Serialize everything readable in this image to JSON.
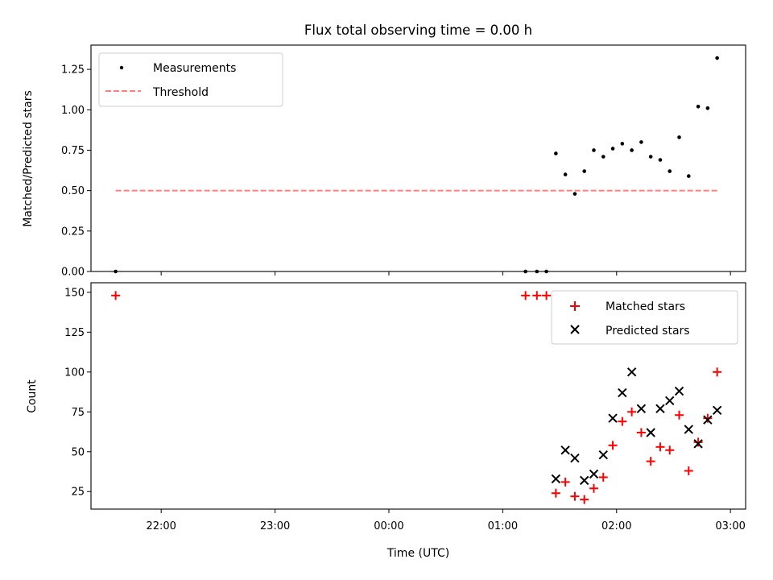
{
  "chart_data": [
    {
      "type": "scatter",
      "title": "Flux total observing time = 0.00 h",
      "xlabel": "",
      "ylabel": "Matched/Predicted stars",
      "xlim": [
        "21:23",
        "03:08"
      ],
      "ylim": [
        0,
        1.4
      ],
      "y_ticks": [
        "0.00",
        "0.25",
        "0.50",
        "0.75",
        "1.00",
        "1.25"
      ],
      "legend": "top-left",
      "series": [
        {
          "name": "Measurements",
          "marker": "dot",
          "color": "#000000",
          "points": [
            {
              "x": "21:36",
              "y": 0.0
            },
            {
              "x": "01:12",
              "y": 0.0
            },
            {
              "x": "01:18",
              "y": 0.0
            },
            {
              "x": "01:23",
              "y": 0.0
            },
            {
              "x": "01:28",
              "y": 0.73
            },
            {
              "x": "01:33",
              "y": 0.6
            },
            {
              "x": "01:38",
              "y": 0.48
            },
            {
              "x": "01:43",
              "y": 0.62
            },
            {
              "x": "01:48",
              "y": 0.75
            },
            {
              "x": "01:53",
              "y": 0.71
            },
            {
              "x": "01:58",
              "y": 0.76
            },
            {
              "x": "02:03",
              "y": 0.79
            },
            {
              "x": "02:08",
              "y": 0.75
            },
            {
              "x": "02:13",
              "y": 0.8
            },
            {
              "x": "02:18",
              "y": 0.71
            },
            {
              "x": "02:23",
              "y": 0.69
            },
            {
              "x": "02:28",
              "y": 0.62
            },
            {
              "x": "02:33",
              "y": 0.83
            },
            {
              "x": "02:38",
              "y": 0.59
            },
            {
              "x": "02:43",
              "y": 1.02
            },
            {
              "x": "02:48",
              "y": 1.01
            },
            {
              "x": "02:53",
              "y": 1.32
            }
          ]
        },
        {
          "name": "Threshold",
          "type": "line",
          "style": "dashed",
          "color": "#ff7f7f",
          "points": [
            {
              "x": "21:36",
              "y": 0.5
            },
            {
              "x": "02:53",
              "y": 0.5
            }
          ]
        }
      ]
    },
    {
      "type": "scatter",
      "title": "",
      "xlabel": "Time (UTC)",
      "ylabel": "Count",
      "xlim": [
        "21:23",
        "03:08"
      ],
      "ylim": [
        14,
        156
      ],
      "x_ticks": [
        "22:00",
        "23:00",
        "00:00",
        "01:00",
        "02:00",
        "03:00"
      ],
      "y_ticks": [
        "25",
        "50",
        "75",
        "100",
        "125",
        "150"
      ],
      "legend": "top-right",
      "series": [
        {
          "name": "Matched stars",
          "marker": "plus",
          "color": "#ff0000",
          "points": [
            {
              "x": "21:36",
              "y": 148
            },
            {
              "x": "01:12",
              "y": 148
            },
            {
              "x": "01:18",
              "y": 148
            },
            {
              "x": "01:23",
              "y": 148
            },
            {
              "x": "01:28",
              "y": 24
            },
            {
              "x": "01:33",
              "y": 31
            },
            {
              "x": "01:38",
              "y": 22
            },
            {
              "x": "01:43",
              "y": 20
            },
            {
              "x": "01:48",
              "y": 27
            },
            {
              "x": "01:53",
              "y": 34
            },
            {
              "x": "01:58",
              "y": 54
            },
            {
              "x": "02:03",
              "y": 69
            },
            {
              "x": "02:08",
              "y": 75
            },
            {
              "x": "02:13",
              "y": 62
            },
            {
              "x": "02:18",
              "y": 44
            },
            {
              "x": "02:23",
              "y": 53
            },
            {
              "x": "02:28",
              "y": 51
            },
            {
              "x": "02:33",
              "y": 73
            },
            {
              "x": "02:38",
              "y": 38
            },
            {
              "x": "02:43",
              "y": 56
            },
            {
              "x": "02:48",
              "y": 71
            },
            {
              "x": "02:53",
              "y": 100
            }
          ]
        },
        {
          "name": "Predicted stars",
          "marker": "x",
          "color": "#000000",
          "points": [
            {
              "x": "01:28",
              "y": 33
            },
            {
              "x": "01:33",
              "y": 51
            },
            {
              "x": "01:38",
              "y": 46
            },
            {
              "x": "01:43",
              "y": 32
            },
            {
              "x": "01:48",
              "y": 36
            },
            {
              "x": "01:53",
              "y": 48
            },
            {
              "x": "01:58",
              "y": 71
            },
            {
              "x": "02:03",
              "y": 87
            },
            {
              "x": "02:08",
              "y": 100
            },
            {
              "x": "02:13",
              "y": 77
            },
            {
              "x": "02:18",
              "y": 62
            },
            {
              "x": "02:23",
              "y": 77
            },
            {
              "x": "02:28",
              "y": 82
            },
            {
              "x": "02:33",
              "y": 88
            },
            {
              "x": "02:38",
              "y": 64
            },
            {
              "x": "02:43",
              "y": 55
            },
            {
              "x": "02:48",
              "y": 70
            },
            {
              "x": "02:53",
              "y": 76
            }
          ]
        }
      ]
    }
  ]
}
